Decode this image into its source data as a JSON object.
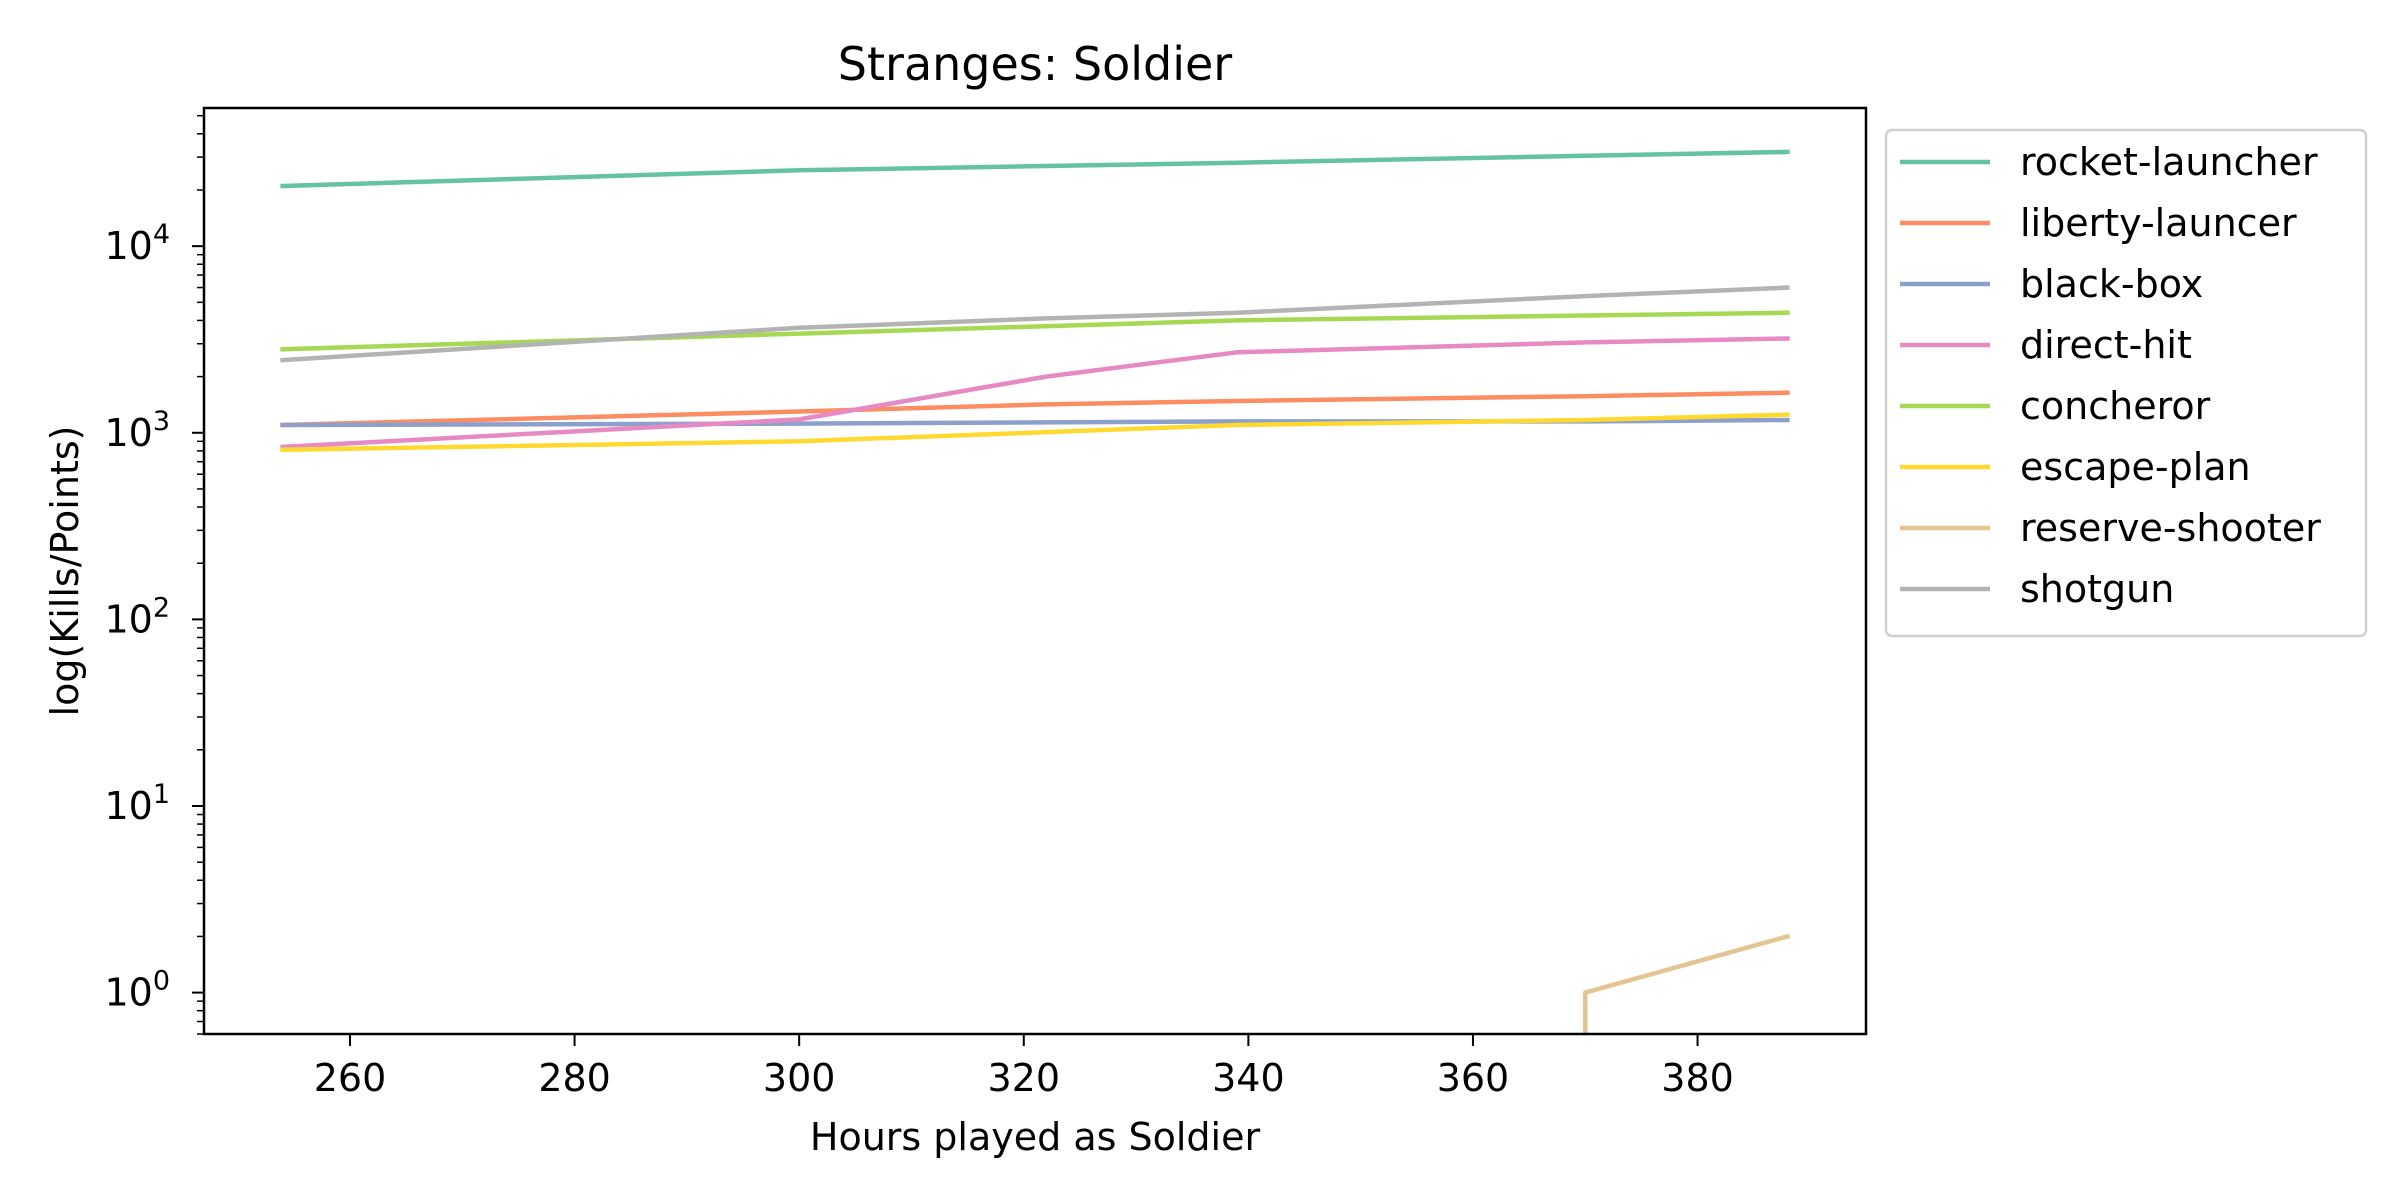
{
  "chart_data": {
    "type": "line",
    "title": "Stranges: Soldier",
    "xlabel": "Hours played as Soldier",
    "ylabel": "log(Kills/Points)",
    "yscale": "log",
    "xlim": [
      247,
      395
    ],
    "ylim": [
      0.6,
      55000
    ],
    "xticks": [
      260,
      280,
      300,
      320,
      340,
      360,
      380
    ],
    "yticks": [
      {
        "value": 1,
        "base": "10",
        "exp": "0"
      },
      {
        "value": 10,
        "base": "10",
        "exp": "1"
      },
      {
        "value": 100,
        "base": "10",
        "exp": "2"
      },
      {
        "value": 1000,
        "base": "10",
        "exp": "3"
      },
      {
        "value": 10000,
        "base": "10",
        "exp": "4"
      }
    ],
    "grid": false,
    "legend_position": "outside-right",
    "series": [
      {
        "name": "rocket-launcher",
        "color": "#66c2a5",
        "points": [
          [
            254,
            21000
          ],
          [
            300,
            25500
          ],
          [
            339,
            28000
          ],
          [
            370,
            30500
          ],
          [
            388,
            32000
          ]
        ]
      },
      {
        "name": "liberty-launcer",
        "color": "#fc8d62",
        "points": [
          [
            254,
            1100
          ],
          [
            300,
            1300
          ],
          [
            322,
            1420
          ],
          [
            339,
            1480
          ],
          [
            370,
            1570
          ],
          [
            388,
            1640
          ]
        ]
      },
      {
        "name": "black-box",
        "color": "#8da0cb",
        "points": [
          [
            254,
            1100
          ],
          [
            300,
            1120
          ],
          [
            339,
            1150
          ],
          [
            370,
            1150
          ],
          [
            388,
            1170
          ]
        ]
      },
      {
        "name": "direct-hit",
        "color": "#e78ac3",
        "points": [
          [
            254,
            840
          ],
          [
            300,
            1180
          ],
          [
            322,
            2000
          ],
          [
            339,
            2700
          ],
          [
            370,
            3050
          ],
          [
            388,
            3200
          ]
        ]
      },
      {
        "name": "concheror",
        "color": "#a6d854",
        "points": [
          [
            254,
            2800
          ],
          [
            300,
            3400
          ],
          [
            339,
            4000
          ],
          [
            370,
            4250
          ],
          [
            388,
            4400
          ]
        ]
      },
      {
        "name": "escape-plan",
        "color": "#ffd92f",
        "points": [
          [
            254,
            810
          ],
          [
            300,
            900
          ],
          [
            339,
            1100
          ],
          [
            370,
            1170
          ],
          [
            388,
            1250
          ]
        ]
      },
      {
        "name": "reserve-shooter",
        "color": "#e5c494",
        "points": [
          [
            370,
            0.3
          ],
          [
            370,
            1
          ],
          [
            388,
            2
          ]
        ]
      },
      {
        "name": "shotgun",
        "color": "#b3b3b3",
        "points": [
          [
            254,
            2450
          ],
          [
            300,
            3650
          ],
          [
            322,
            4100
          ],
          [
            339,
            4400
          ],
          [
            370,
            5400
          ],
          [
            388,
            6000
          ]
        ]
      }
    ]
  }
}
